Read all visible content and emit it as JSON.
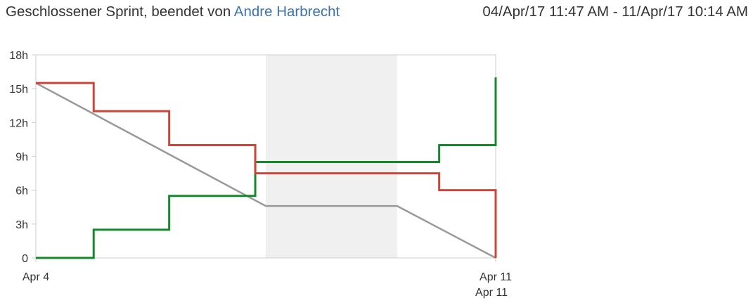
{
  "header": {
    "status_text": "Geschlossener Sprint, beendet von ",
    "user_name": "Andre Harbrecht",
    "date_range": "04/Apr/17 11:47 AM - 11/Apr/17 10:14 AM"
  },
  "colors": {
    "remaining": "#d04437",
    "completed": "#14892c",
    "guideline": "#999999",
    "non_working": "#f0f0f0",
    "axis": "#cccccc"
  },
  "chart_data": {
    "type": "line",
    "title": "",
    "xlabel": "",
    "ylabel": "",
    "x_unit": "days",
    "xlim": [
      0,
      7.0
    ],
    "ylim": [
      0,
      18
    ],
    "grid": false,
    "y_ticks": [
      "0",
      "3h",
      "6h",
      "9h",
      "12h",
      "15h",
      "18h"
    ],
    "x_ticks": [
      {
        "x": 0,
        "label": "Apr 4"
      },
      {
        "x": 7.0,
        "label": "Apr 11"
      }
    ],
    "x_end_label": "Apr 11",
    "non_working_range": [
      3.5,
      5.5
    ],
    "series": [
      {
        "key": "remaining",
        "points": [
          [
            0,
            15.5
          ],
          [
            0.88,
            15.5
          ],
          [
            0.88,
            13
          ],
          [
            2.03,
            13
          ],
          [
            2.03,
            10
          ],
          [
            3.34,
            10
          ],
          [
            3.34,
            7.5
          ],
          [
            6.14,
            7.5
          ],
          [
            6.14,
            6
          ],
          [
            7.0,
            6
          ],
          [
            7.0,
            0
          ]
        ]
      },
      {
        "key": "completed",
        "points": [
          [
            0,
            0
          ],
          [
            0.88,
            0
          ],
          [
            0.88,
            2.5
          ],
          [
            2.03,
            2.5
          ],
          [
            2.03,
            5.5
          ],
          [
            3.34,
            5.5
          ],
          [
            3.34,
            8.5
          ],
          [
            6.14,
            8.5
          ],
          [
            6.14,
            10
          ],
          [
            7.0,
            10
          ],
          [
            7.0,
            16
          ]
        ]
      },
      {
        "key": "guideline",
        "points": [
          [
            0,
            15.5
          ],
          [
            3.5,
            4.6
          ],
          [
            5.5,
            4.6
          ],
          [
            7.0,
            0
          ]
        ]
      }
    ]
  }
}
